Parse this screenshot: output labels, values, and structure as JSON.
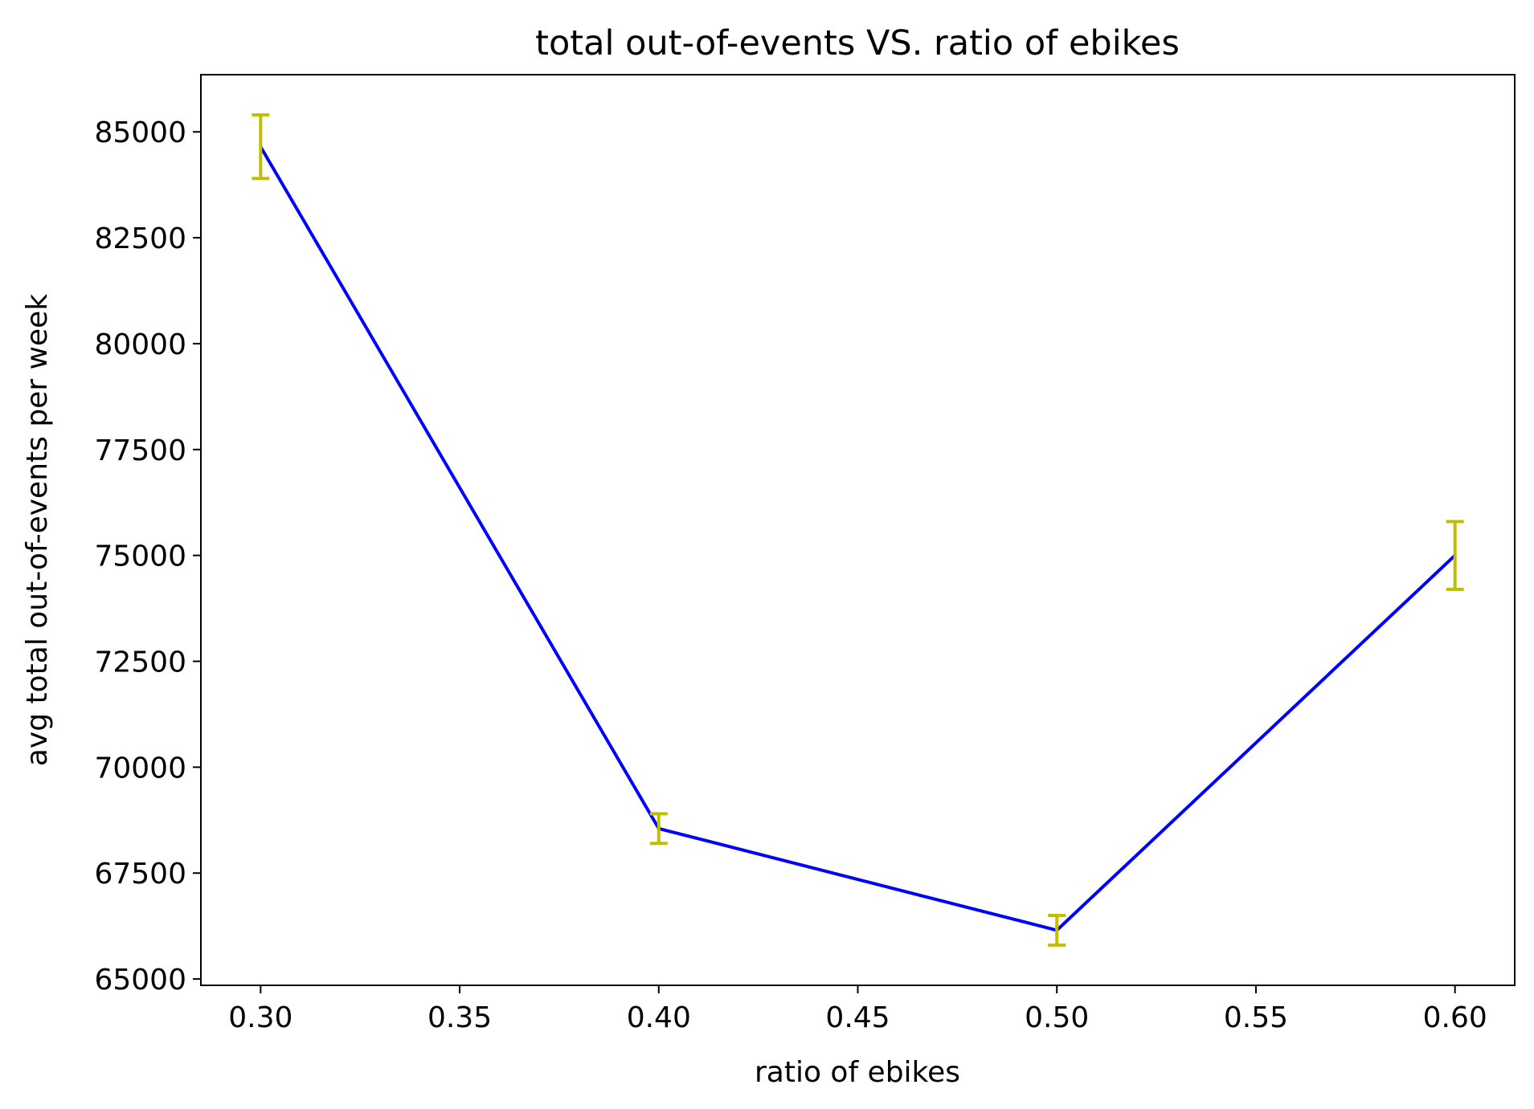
{
  "chart_data": {
    "type": "line",
    "title": "total out-of-events VS. ratio of ebikes",
    "xlabel": "ratio of ebikes",
    "ylabel": "avg total out-of-events per week",
    "xlim": [
      0.285,
      0.615
    ],
    "ylim": [
      64850,
      86350
    ],
    "x_ticks": [
      0.3,
      0.35,
      0.4,
      0.45,
      0.5,
      0.55,
      0.6
    ],
    "x_tick_labels": [
      "0.30",
      "0.35",
      "0.40",
      "0.45",
      "0.50",
      "0.55",
      "0.60"
    ],
    "y_ticks": [
      65000,
      67500,
      70000,
      72500,
      75000,
      77500,
      80000,
      82500,
      85000
    ],
    "y_tick_labels": [
      "65000",
      "67500",
      "70000",
      "72500",
      "75000",
      "77500",
      "80000",
      "82500",
      "85000"
    ],
    "grid": false,
    "series": [
      {
        "x": [
          0.3,
          0.4,
          0.5,
          0.6
        ],
        "y": [
          84650,
          68550,
          66150,
          75000
        ],
        "error": [
          750,
          350,
          350,
          800
        ],
        "line_color": "#0000ff",
        "error_color": "#bfbf00"
      }
    ]
  }
}
